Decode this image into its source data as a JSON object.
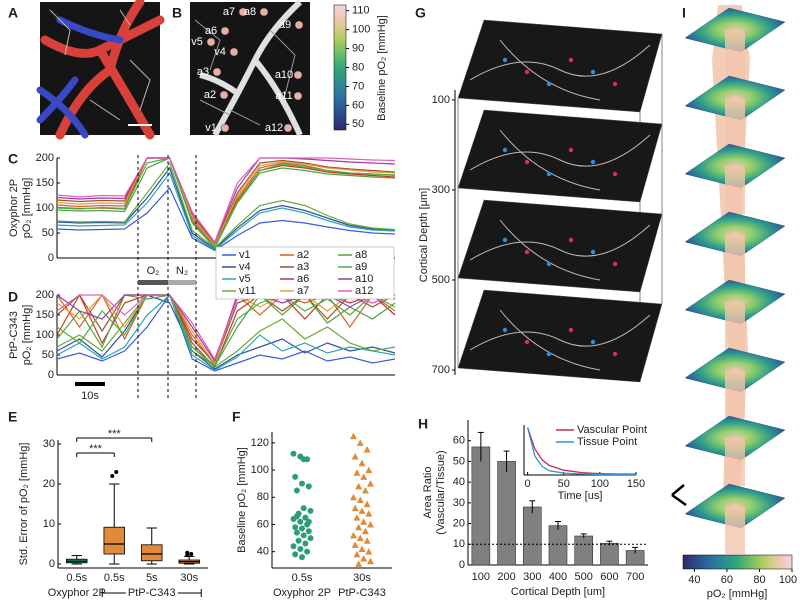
{
  "chart_data": [
    {
      "type": "image",
      "panel": "A"
    },
    {
      "type": "image",
      "panel": "B",
      "labels": [
        "a7",
        "a8",
        "v5",
        "a6",
        "a9",
        "v4",
        "a3",
        "a10",
        "a2",
        "a11",
        "v1",
        "a12"
      ],
      "colorbar": {
        "label": "Baseline pO₂ [mmHg]",
        "ylim": [
          47,
          113
        ],
        "yticks": [
          50,
          60,
          70,
          80,
          90,
          100,
          110
        ]
      }
    },
    {
      "type": "line",
      "panel": "C",
      "ylabel": [
        "Oxyphor 2P",
        "pO₂ [mmHg]"
      ],
      "ylim": [
        0,
        200
      ],
      "yticks": [
        0,
        50,
        100,
        150,
        200
      ],
      "annotations": [
        "O₂",
        "N₂"
      ],
      "series": [
        {
          "name": "v1",
          "color": "#3b5bdb",
          "values": [
            58,
            56,
            57,
            58,
            90,
            140,
            40,
            15,
            45,
            70,
            75,
            70,
            62,
            55,
            50,
            48
          ]
        },
        {
          "name": "v4",
          "color": "#2f4fa8",
          "values": [
            72,
            70,
            71,
            70,
            120,
            180,
            50,
            18,
            60,
            95,
            105,
            95,
            80,
            65,
            58,
            55
          ]
        },
        {
          "name": "v5",
          "color": "#2aa8b0",
          "values": [
            66,
            64,
            65,
            66,
            110,
            170,
            45,
            16,
            55,
            90,
            100,
            90,
            75,
            62,
            56,
            54
          ]
        },
        {
          "name": "v11",
          "color": "#6aaa3a",
          "values": [
            74,
            72,
            73,
            72,
            130,
            190,
            55,
            20,
            65,
            105,
            115,
            105,
            85,
            68,
            60,
            57
          ]
        },
        {
          "name": "a2",
          "color": "#d9602a",
          "values": [
            106,
            103,
            105,
            104,
            200,
            200,
            80,
            25,
            120,
            180,
            190,
            185,
            175,
            170,
            168,
            165
          ]
        },
        {
          "name": "a3",
          "color": "#a0522d",
          "values": [
            116,
            113,
            115,
            114,
            200,
            200,
            85,
            28,
            130,
            190,
            195,
            190,
            182,
            178,
            175,
            172
          ]
        },
        {
          "name": "a6",
          "color": "#c0392b",
          "values": [
            101,
            99,
            100,
            98,
            200,
            200,
            75,
            22,
            115,
            175,
            185,
            180,
            172,
            168,
            165,
            162
          ]
        },
        {
          "name": "a7",
          "color": "#e8a030",
          "values": [
            111,
            108,
            110,
            109,
            200,
            200,
            82,
            26,
            125,
            185,
            192,
            188,
            180,
            176,
            172,
            170
          ]
        },
        {
          "name": "a8",
          "color": "#5a9e3a",
          "values": [
            96,
            94,
            95,
            93,
            180,
            200,
            70,
            20,
            110,
            170,
            180,
            175,
            168,
            165,
            162,
            160
          ]
        },
        {
          "name": "a9",
          "color": "#4caf50",
          "values": [
            100,
            98,
            101,
            99,
            190,
            200,
            72,
            22,
            112,
            175,
            188,
            182,
            175,
            170,
            168,
            166
          ]
        },
        {
          "name": "a10",
          "color": "#9b3fa0",
          "values": [
            121,
            118,
            120,
            119,
            200,
            200,
            90,
            30,
            140,
            200,
            200,
            198,
            195,
            192,
            190,
            188
          ]
        },
        {
          "name": "a12",
          "color": "#e060c0",
          "values": [
            126,
            122,
            125,
            124,
            200,
            200,
            92,
            32,
            150,
            200,
            200,
            200,
            200,
            198,
            196,
            195
          ]
        }
      ]
    },
    {
      "type": "line",
      "panel": "D",
      "ylabel": [
        "PtP-C343",
        "pO₂ [mmHg]"
      ],
      "ylim": [
        0,
        200
      ],
      "yticks": [
        0,
        50,
        100,
        150,
        200
      ],
      "scalebar": "10s",
      "series": [
        {
          "color": "#3b5bdb",
          "values": [
            40,
            55,
            35,
            60,
            120,
            200,
            40,
            10,
            30,
            50,
            40,
            60,
            35,
            45,
            30,
            40
          ]
        },
        {
          "color": "#2f4fa8",
          "values": [
            60,
            90,
            45,
            110,
            200,
            180,
            60,
            15,
            50,
            70,
            90,
            55,
            80,
            60,
            70,
            55
          ]
        },
        {
          "color": "#2aa8b0",
          "values": [
            50,
            80,
            40,
            70,
            150,
            200,
            50,
            12,
            45,
            100,
            60,
            80,
            55,
            70,
            60,
            50
          ]
        },
        {
          "color": "#6aaa3a",
          "values": [
            70,
            100,
            60,
            130,
            200,
            200,
            70,
            20,
            60,
            110,
            140,
            90,
            120,
            80,
            60,
            70
          ]
        },
        {
          "color": "#d9602a",
          "values": [
            200,
            120,
            200,
            90,
            200,
            200,
            100,
            25,
            200,
            150,
            200,
            180,
            200,
            120,
            200,
            160
          ]
        },
        {
          "color": "#a0522d",
          "values": [
            150,
            200,
            110,
            200,
            200,
            200,
            90,
            30,
            180,
            200,
            160,
            200,
            140,
            200,
            170,
            200
          ]
        },
        {
          "color": "#c0392b",
          "values": [
            100,
            200,
            80,
            180,
            200,
            200,
            80,
            20,
            160,
            200,
            200,
            140,
            200,
            180,
            200,
            150
          ]
        },
        {
          "color": "#e8a030",
          "values": [
            180,
            140,
            200,
            120,
            200,
            200,
            110,
            28,
            200,
            170,
            200,
            200,
            160,
            200,
            180,
            200
          ]
        },
        {
          "color": "#5a9e3a",
          "values": [
            90,
            160,
            70,
            200,
            190,
            200,
            60,
            22,
            120,
            200,
            150,
            200,
            130,
            170,
            140,
            180
          ]
        },
        {
          "color": "#4caf50",
          "values": [
            120,
            80,
            160,
            100,
            200,
            200,
            70,
            24,
            140,
            180,
            200,
            160,
            190,
            150,
            200,
            170
          ]
        },
        {
          "color": "#9b3fa0",
          "values": [
            200,
            160,
            140,
            200,
            200,
            200,
            120,
            35,
            200,
            200,
            180,
            200,
            200,
            170,
            200,
            190
          ]
        },
        {
          "color": "#e060c0",
          "values": [
            160,
            200,
            200,
            150,
            200,
            200,
            130,
            40,
            190,
            200,
            200,
            190,
            200,
            200,
            180,
            200
          ]
        }
      ]
    },
    {
      "type": "box",
      "panel": "E",
      "ylabel": "Std. Error of pO₂ [mmHg]",
      "ylim": [
        -1,
        31
      ],
      "yticks": [
        0,
        10,
        20,
        30
      ],
      "categories": [
        "0.5s",
        "0.5s",
        "5s",
        "30s"
      ],
      "groups": [
        {
          "label": "Oxyphor 2P",
          "span": [
            0,
            0
          ]
        },
        {
          "label": "PtP-C343",
          "span": [
            1,
            3
          ]
        }
      ],
      "colors": [
        "#2a9d7a",
        "#e08a3c",
        "#e08a3c",
        "#e08a3c"
      ],
      "boxes": [
        {
          "min": 0,
          "q1": 0.3,
          "median": 0.7,
          "q3": 1.2,
          "max": 2.1,
          "outliers": []
        },
        {
          "min": 0,
          "q1": 2.5,
          "median": 5,
          "q3": 9.2,
          "max": 20,
          "outliers": [
            22,
            23
          ]
        },
        {
          "min": 0,
          "q1": 0.8,
          "median": 2.5,
          "q3": 4.8,
          "max": 9,
          "outliers": []
        },
        {
          "min": 0,
          "q1": 0.2,
          "median": 0.6,
          "q3": 1,
          "max": 1.9,
          "outliers": [
            2.2,
            2.5,
            2.8
          ]
        }
      ],
      "comparisons": [
        {
          "from": 0,
          "to": 2,
          "label": "***"
        },
        {
          "from": 0,
          "to": 1,
          "label": "***"
        }
      ]
    },
    {
      "type": "strip",
      "panel": "F",
      "ylabel": "Baseline pO₂ [mmHg]",
      "ylim": [
        28,
        128
      ],
      "yticks": [
        40,
        60,
        80,
        100,
        120
      ],
      "categories": [
        "0.5s",
        "30s"
      ],
      "groups": [
        "Oxyphor 2P",
        "PtP-C343"
      ],
      "series": [
        {
          "color": "#2a9d7a",
          "marker": "circle",
          "values": [
            112,
            110,
            108,
            95,
            90,
            88,
            85,
            72,
            70,
            68,
            65,
            64,
            62,
            60,
            58,
            57,
            55,
            54,
            52,
            50,
            48,
            46,
            44,
            42,
            40,
            38,
            36,
            62,
            66,
            108
          ]
        },
        {
          "color": "#e08a3c",
          "marker": "triangle",
          "values": [
            125,
            120,
            115,
            110,
            105,
            100,
            98,
            95,
            90,
            88,
            85,
            80,
            78,
            75,
            72,
            70,
            68,
            65,
            62,
            60,
            58,
            55,
            52,
            50,
            48,
            45,
            42,
            40,
            38,
            35,
            33,
            31
          ]
        }
      ]
    },
    {
      "type": "image-stack",
      "panel": "G",
      "ylabel": "Cortical Depth [μm]",
      "ylim": [
        0,
        800
      ],
      "yticks": [
        100,
        300,
        500,
        700
      ]
    },
    {
      "type": "bar",
      "panel": "H",
      "ylabel": [
        "Area Ratio",
        "(Vascular/Tissue)"
      ],
      "xlabel": "Cortical Depth [um]",
      "ylim": [
        0,
        70
      ],
      "yticks": [
        0,
        10,
        20,
        30,
        40,
        50,
        60
      ],
      "color": "#808080",
      "categories": [
        "100",
        "200",
        "300",
        "400",
        "500",
        "600",
        "700"
      ],
      "values": [
        57,
        50,
        28,
        19,
        14,
        10.5,
        7
      ],
      "errors": [
        7,
        5,
        3,
        2,
        1,
        1,
        1.5
      ],
      "hline": 10,
      "inset": {
        "xlabel": "Time [us]",
        "xlim": [
          -5,
          150
        ],
        "xticks": [
          0,
          50,
          100,
          150
        ],
        "ylim": [
          0,
          1.05
        ],
        "x": [
          0,
          10,
          20,
          30,
          50,
          75,
          100,
          125,
          150
        ],
        "series": [
          {
            "name": "Vascular Point",
            "color": "#c0304a",
            "values": [
              1,
              0.55,
              0.32,
              0.2,
              0.1,
              0.05,
              0.03,
              0.02,
              0.02
            ]
          },
          {
            "name": "Tissue Point",
            "color": "#3a8fd8",
            "values": [
              1,
              0.4,
              0.18,
              0.09,
              0.04,
              0.02,
              0.01,
              0.01,
              0.01
            ]
          }
        ]
      }
    },
    {
      "type": "image-tower",
      "panel": "I",
      "colorbar": {
        "label": "pO₂ [mmHg]",
        "xlim": [
          33,
          100
        ],
        "xticks": [
          40,
          60,
          80,
          100
        ]
      }
    }
  ]
}
